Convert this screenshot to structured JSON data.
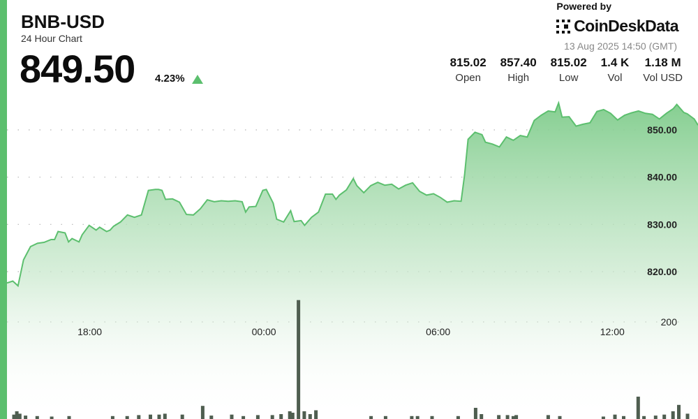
{
  "header": {
    "symbol": "BNB-USD",
    "subtitle": "24 Hour Chart",
    "price": "849.50",
    "change_pct": "4.23%"
  },
  "branding": {
    "powered_by": "Powered by",
    "brand_name": "CoinDeskData",
    "logo_icon": "coindesk-logo-icon",
    "timestamp": "13 Aug 2025 14:50 (GMT)"
  },
  "stats": [
    {
      "value": "815.02",
      "label": "Open"
    },
    {
      "value": "857.40",
      "label": "High"
    },
    {
      "value": "815.02",
      "label": "Low"
    },
    {
      "value": "1.4 K",
      "label": "Vol"
    },
    {
      "value": "1.18 M",
      "label": "Vol USD"
    }
  ],
  "colors": {
    "accent": "#5cbf6e",
    "line": "#5cbf6e",
    "area_top": "#7fcc8b",
    "volume_bar": "#4f5e50"
  },
  "chart_data": {
    "type": "area",
    "title": "",
    "xlabel": "",
    "ylabel": "",
    "grid": true,
    "x_tick_labels": [
      {
        "label": "18:00",
        "hour": 18
      },
      {
        "label": "00:00",
        "hour": 24
      },
      {
        "label": "06:00",
        "hour": 30
      },
      {
        "label": "12:00",
        "hour": 36
      }
    ],
    "y_tick_labels": [
      "850.00",
      "840.00",
      "830.00",
      "820.00"
    ],
    "y_ticks": [
      850,
      840,
      830,
      820
    ],
    "ylim": [
      810,
      856
    ],
    "volume_axis_label": "200",
    "volume_axis_value": 200,
    "volume_max": 650,
    "x_range_hours": [
      15.15,
      38.95
    ],
    "series": [
      {
        "values": [
          [
            15.15,
            817.6
          ],
          [
            15.35,
            818.0
          ],
          [
            15.53,
            817.0
          ],
          [
            15.72,
            822.5
          ],
          [
            15.96,
            825.3
          ],
          [
            16.2,
            826.0
          ],
          [
            16.43,
            826.2
          ],
          [
            16.67,
            826.8
          ],
          [
            16.79,
            826.8
          ],
          [
            16.91,
            828.5
          ],
          [
            17.15,
            828.2
          ],
          [
            17.27,
            826.3
          ],
          [
            17.39,
            827.0
          ],
          [
            17.63,
            826.3
          ],
          [
            17.74,
            827.8
          ],
          [
            17.98,
            829.8
          ],
          [
            18.22,
            828.8
          ],
          [
            18.34,
            829.4
          ],
          [
            18.58,
            828.5
          ],
          [
            18.7,
            828.8
          ],
          [
            18.82,
            829.6
          ],
          [
            19.06,
            830.5
          ],
          [
            19.3,
            832.0
          ],
          [
            19.54,
            831.5
          ],
          [
            19.78,
            832.0
          ],
          [
            20.02,
            837.2
          ],
          [
            20.26,
            837.4
          ],
          [
            20.37,
            837.4
          ],
          [
            20.49,
            837.2
          ],
          [
            20.61,
            835.3
          ],
          [
            20.85,
            835.4
          ],
          [
            21.09,
            834.7
          ],
          [
            21.33,
            832.1
          ],
          [
            21.57,
            832.0
          ],
          [
            21.81,
            833.3
          ],
          [
            22.05,
            835.2
          ],
          [
            22.29,
            834.8
          ],
          [
            22.53,
            835.0
          ],
          [
            22.77,
            834.9
          ],
          [
            23.01,
            835.0
          ],
          [
            23.25,
            834.8
          ],
          [
            23.37,
            832.6
          ],
          [
            23.49,
            833.7
          ],
          [
            23.72,
            833.8
          ],
          [
            23.96,
            837.2
          ],
          [
            24.08,
            837.4
          ],
          [
            24.32,
            834.5
          ],
          [
            24.44,
            831.1
          ],
          [
            24.68,
            830.5
          ],
          [
            24.92,
            832.9
          ],
          [
            25.04,
            830.6
          ],
          [
            25.28,
            830.8
          ],
          [
            25.4,
            829.8
          ],
          [
            25.64,
            831.5
          ],
          [
            25.88,
            832.6
          ],
          [
            26.12,
            836.4
          ],
          [
            26.36,
            836.4
          ],
          [
            26.48,
            835.3
          ],
          [
            26.6,
            836.2
          ],
          [
            26.84,
            837.3
          ],
          [
            27.08,
            839.7
          ],
          [
            27.2,
            838.2
          ],
          [
            27.44,
            836.7
          ],
          [
            27.68,
            838.2
          ],
          [
            27.92,
            838.9
          ],
          [
            28.16,
            838.3
          ],
          [
            28.4,
            838.5
          ],
          [
            28.64,
            837.5
          ],
          [
            28.88,
            838.3
          ],
          [
            29.12,
            838.8
          ],
          [
            29.36,
            837.0
          ],
          [
            29.6,
            836.2
          ],
          [
            29.84,
            836.5
          ],
          [
            30.08,
            835.7
          ],
          [
            30.31,
            834.7
          ],
          [
            30.55,
            835.0
          ],
          [
            30.79,
            834.9
          ],
          [
            30.91,
            840.5
          ],
          [
            31.03,
            848.0
          ],
          [
            31.27,
            849.5
          ],
          [
            31.51,
            849.0
          ],
          [
            31.63,
            847.4
          ],
          [
            31.87,
            847.0
          ],
          [
            32.11,
            846.4
          ],
          [
            32.35,
            848.5
          ],
          [
            32.59,
            847.8
          ],
          [
            32.83,
            848.8
          ],
          [
            33.07,
            848.5
          ],
          [
            33.31,
            852.0
          ],
          [
            33.55,
            853.1
          ],
          [
            33.79,
            854.0
          ],
          [
            34.03,
            853.8
          ],
          [
            34.15,
            855.7
          ],
          [
            34.27,
            852.7
          ],
          [
            34.51,
            852.8
          ],
          [
            34.75,
            850.8
          ],
          [
            34.99,
            851.2
          ],
          [
            35.23,
            851.5
          ],
          [
            35.47,
            853.9
          ],
          [
            35.7,
            854.3
          ],
          [
            35.94,
            853.5
          ],
          [
            36.18,
            852.1
          ],
          [
            36.42,
            853.1
          ],
          [
            36.66,
            853.6
          ],
          [
            36.9,
            854.0
          ],
          [
            37.14,
            853.5
          ],
          [
            37.38,
            853.3
          ],
          [
            37.62,
            852.3
          ],
          [
            37.86,
            853.5
          ],
          [
            38.1,
            854.5
          ],
          [
            38.22,
            855.4
          ],
          [
            38.46,
            853.7
          ],
          [
            38.58,
            853.4
          ],
          [
            38.82,
            852.3
          ],
          [
            38.95,
            851.0
          ]
        ]
      }
    ],
    "volume": [
      [
        15.39,
        9
      ],
      [
        15.49,
        16
      ],
      [
        15.59,
        11
      ],
      [
        15.79,
        7
      ],
      [
        16.19,
        6
      ],
      [
        16.69,
        5
      ],
      [
        17.29,
        6
      ],
      [
        18.79,
        6
      ],
      [
        19.29,
        6
      ],
      [
        19.69,
        8
      ],
      [
        20.09,
        9
      ],
      [
        20.39,
        9
      ],
      [
        20.59,
        11
      ],
      [
        21.19,
        9
      ],
      [
        21.89,
        27
      ],
      [
        22.19,
        7
      ],
      [
        22.89,
        9
      ],
      [
        23.29,
        6
      ],
      [
        23.79,
        8
      ],
      [
        24.29,
        8
      ],
      [
        24.59,
        10
      ],
      [
        24.89,
        16
      ],
      [
        24.99,
        13
      ],
      [
        25.19,
        245
      ],
      [
        25.39,
        16
      ],
      [
        25.59,
        10
      ],
      [
        25.79,
        18
      ],
      [
        27.69,
        6
      ],
      [
        28.19,
        6
      ],
      [
        29.09,
        6
      ],
      [
        29.29,
        6
      ],
      [
        29.79,
        6
      ],
      [
        30.69,
        6
      ],
      [
        31.29,
        23
      ],
      [
        31.49,
        10
      ],
      [
        32.09,
        8
      ],
      [
        32.39,
        8
      ],
      [
        32.59,
        6
      ],
      [
        32.69,
        8
      ],
      [
        33.79,
        8
      ],
      [
        34.19,
        6
      ],
      [
        35.69,
        5
      ],
      [
        36.09,
        9
      ],
      [
        36.39,
        6
      ],
      [
        36.89,
        46
      ],
      [
        37.09,
        6
      ],
      [
        37.49,
        7
      ],
      [
        37.79,
        9
      ],
      [
        38.09,
        16
      ],
      [
        38.29,
        29
      ],
      [
        38.59,
        11
      ]
    ]
  }
}
